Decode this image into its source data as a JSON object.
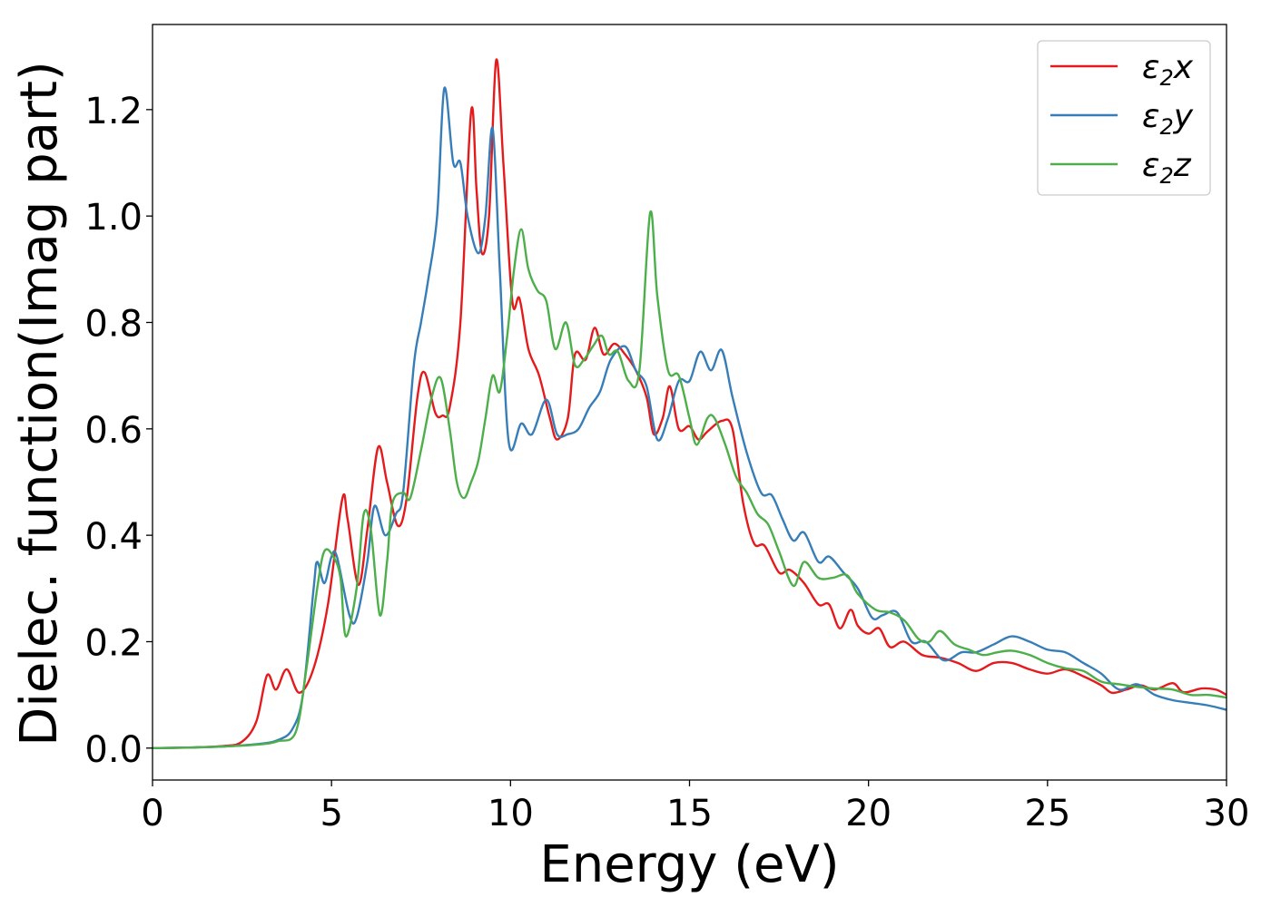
{
  "chart_data": {
    "type": "line",
    "title": "",
    "xlabel": "Energy (eV)",
    "ylabel": "Dielec. function(Imag part)",
    "xlim": [
      0,
      30
    ],
    "ylim": [
      -0.06,
      1.36
    ],
    "xticks": [
      0,
      5,
      10,
      15,
      20,
      25,
      30
    ],
    "xtick_labels": [
      "0",
      "5",
      "10",
      "15",
      "20",
      "25",
      "30"
    ],
    "yticks": [
      0.0,
      0.2,
      0.4,
      0.6,
      0.8,
      1.0,
      1.2
    ],
    "ytick_labels": [
      "0.0",
      "0.2",
      "0.4",
      "0.6",
      "0.8",
      "1.0",
      "1.2"
    ],
    "grid": false,
    "legend_position": "top-right",
    "series": [
      {
        "name": "ε₂x",
        "legend_base": "ε",
        "legend_sub": "2",
        "legend_suffix": "x",
        "color": "#e41a1c",
        "points": [
          [
            0,
            0
          ],
          [
            1,
            0.001
          ],
          [
            2,
            0.004
          ],
          [
            2.5,
            0.012
          ],
          [
            2.9,
            0.05
          ],
          [
            3.2,
            0.137
          ],
          [
            3.45,
            0.11
          ],
          [
            3.75,
            0.148
          ],
          [
            4.1,
            0.104
          ],
          [
            4.5,
            0.15
          ],
          [
            4.9,
            0.27
          ],
          [
            5.3,
            0.468
          ],
          [
            5.45,
            0.43
          ],
          [
            5.75,
            0.307
          ],
          [
            6,
            0.41
          ],
          [
            6.3,
            0.565
          ],
          [
            6.55,
            0.5
          ],
          [
            6.85,
            0.418
          ],
          [
            7.1,
            0.47
          ],
          [
            7.4,
            0.66
          ],
          [
            7.6,
            0.706
          ],
          [
            7.9,
            0.63
          ],
          [
            8.1,
            0.625
          ],
          [
            8.3,
            0.64
          ],
          [
            8.6,
            0.8
          ],
          [
            8.9,
            1.197
          ],
          [
            9.05,
            1.05
          ],
          [
            9.2,
            0.93
          ],
          [
            9.4,
            1.0
          ],
          [
            9.6,
            1.293
          ],
          [
            9.8,
            1.1
          ],
          [
            10.05,
            0.84
          ],
          [
            10.25,
            0.845
          ],
          [
            10.5,
            0.75
          ],
          [
            10.8,
            0.7
          ],
          [
            11.1,
            0.62
          ],
          [
            11.3,
            0.58
          ],
          [
            11.6,
            0.62
          ],
          [
            11.8,
            0.74
          ],
          [
            12.1,
            0.73
          ],
          [
            12.35,
            0.79
          ],
          [
            12.6,
            0.74
          ],
          [
            12.9,
            0.76
          ],
          [
            13.2,
            0.74
          ],
          [
            13.5,
            0.71
          ],
          [
            13.8,
            0.66
          ],
          [
            14,
            0.59
          ],
          [
            14.25,
            0.62
          ],
          [
            14.45,
            0.68
          ],
          [
            14.7,
            0.6
          ],
          [
            15,
            0.605
          ],
          [
            15.25,
            0.58
          ],
          [
            15.5,
            0.595
          ],
          [
            15.9,
            0.615
          ],
          [
            16.2,
            0.6
          ],
          [
            16.5,
            0.46
          ],
          [
            16.8,
            0.385
          ],
          [
            17.1,
            0.38
          ],
          [
            17.5,
            0.33
          ],
          [
            17.8,
            0.335
          ],
          [
            18.2,
            0.31
          ],
          [
            18.6,
            0.27
          ],
          [
            18.9,
            0.27
          ],
          [
            19.2,
            0.225
          ],
          [
            19.5,
            0.26
          ],
          [
            19.7,
            0.23
          ],
          [
            20,
            0.215
          ],
          [
            20.3,
            0.225
          ],
          [
            20.6,
            0.19
          ],
          [
            21,
            0.2
          ],
          [
            21.5,
            0.175
          ],
          [
            22,
            0.17
          ],
          [
            22.5,
            0.16
          ],
          [
            23,
            0.145
          ],
          [
            23.5,
            0.16
          ],
          [
            24,
            0.16
          ],
          [
            24.5,
            0.148
          ],
          [
            25,
            0.14
          ],
          [
            25.5,
            0.148
          ],
          [
            26,
            0.135
          ],
          [
            26.5,
            0.118
          ],
          [
            26.8,
            0.104
          ],
          [
            27.2,
            0.11
          ],
          [
            27.6,
            0.118
          ],
          [
            28,
            0.11
          ],
          [
            28.5,
            0.122
          ],
          [
            28.8,
            0.105
          ],
          [
            29.3,
            0.112
          ],
          [
            29.7,
            0.11
          ],
          [
            30,
            0.1
          ]
        ]
      },
      {
        "name": "ε₂y",
        "legend_base": "ε",
        "legend_sub": "2",
        "legend_suffix": "y",
        "color": "#377eb8",
        "points": [
          [
            0,
            0
          ],
          [
            1,
            0.001
          ],
          [
            2,
            0.003
          ],
          [
            3,
            0.008
          ],
          [
            3.5,
            0.015
          ],
          [
            3.9,
            0.035
          ],
          [
            4.2,
            0.1
          ],
          [
            4.5,
            0.3
          ],
          [
            4.6,
            0.35
          ],
          [
            4.8,
            0.31
          ],
          [
            5,
            0.36
          ],
          [
            5.15,
            0.36
          ],
          [
            5.5,
            0.25
          ],
          [
            5.7,
            0.245
          ],
          [
            6,
            0.35
          ],
          [
            6.2,
            0.455
          ],
          [
            6.5,
            0.4
          ],
          [
            6.8,
            0.44
          ],
          [
            7,
            0.48
          ],
          [
            7.3,
            0.72
          ],
          [
            7.5,
            0.8
          ],
          [
            7.7,
            0.88
          ],
          [
            7.95,
            1.0
          ],
          [
            8.15,
            1.24
          ],
          [
            8.4,
            1.1
          ],
          [
            8.6,
            1.1
          ],
          [
            8.8,
            1.0
          ],
          [
            9.1,
            0.93
          ],
          [
            9.3,
            1.0
          ],
          [
            9.5,
            1.165
          ],
          [
            9.7,
            0.9
          ],
          [
            9.95,
            0.575
          ],
          [
            10.3,
            0.61
          ],
          [
            10.6,
            0.59
          ],
          [
            11,
            0.655
          ],
          [
            11.3,
            0.59
          ],
          [
            11.6,
            0.59
          ],
          [
            11.9,
            0.6
          ],
          [
            12.2,
            0.64
          ],
          [
            12.5,
            0.67
          ],
          [
            12.8,
            0.73
          ],
          [
            13.2,
            0.755
          ],
          [
            13.5,
            0.71
          ],
          [
            13.8,
            0.68
          ],
          [
            14.1,
            0.58
          ],
          [
            14.4,
            0.62
          ],
          [
            14.7,
            0.69
          ],
          [
            15,
            0.69
          ],
          [
            15.3,
            0.745
          ],
          [
            15.6,
            0.71
          ],
          [
            15.9,
            0.748
          ],
          [
            16.2,
            0.66
          ],
          [
            16.6,
            0.555
          ],
          [
            17,
            0.48
          ],
          [
            17.3,
            0.475
          ],
          [
            17.6,
            0.43
          ],
          [
            17.9,
            0.39
          ],
          [
            18.2,
            0.405
          ],
          [
            18.6,
            0.35
          ],
          [
            18.9,
            0.36
          ],
          [
            19.3,
            0.33
          ],
          [
            19.7,
            0.3
          ],
          [
            20.1,
            0.245
          ],
          [
            20.4,
            0.25
          ],
          [
            20.8,
            0.255
          ],
          [
            21.2,
            0.2
          ],
          [
            21.6,
            0.2
          ],
          [
            22.1,
            0.165
          ],
          [
            22.6,
            0.18
          ],
          [
            23,
            0.18
          ],
          [
            23.5,
            0.195
          ],
          [
            24,
            0.21
          ],
          [
            24.5,
            0.2
          ],
          [
            25,
            0.185
          ],
          [
            25.5,
            0.18
          ],
          [
            26,
            0.16
          ],
          [
            26.5,
            0.14
          ],
          [
            27,
            0.11
          ],
          [
            27.5,
            0.12
          ],
          [
            28,
            0.1
          ],
          [
            28.5,
            0.09
          ],
          [
            29,
            0.085
          ],
          [
            29.5,
            0.08
          ],
          [
            30,
            0.072
          ]
        ]
      },
      {
        "name": "ε₂z",
        "legend_base": "ε",
        "legend_sub": "2",
        "legend_suffix": "z",
        "color": "#4daf4a",
        "points": [
          [
            0,
            0
          ],
          [
            1,
            0.001
          ],
          [
            2,
            0.003
          ],
          [
            3,
            0.007
          ],
          [
            3.5,
            0.013
          ],
          [
            4,
            0.03
          ],
          [
            4.3,
            0.15
          ],
          [
            4.6,
            0.3
          ],
          [
            4.8,
            0.37
          ],
          [
            5.05,
            0.36
          ],
          [
            5.25,
            0.32
          ],
          [
            5.4,
            0.21
          ],
          [
            5.7,
            0.3
          ],
          [
            5.9,
            0.44
          ],
          [
            6.1,
            0.41
          ],
          [
            6.35,
            0.25
          ],
          [
            6.55,
            0.35
          ],
          [
            6.7,
            0.46
          ],
          [
            7,
            0.48
          ],
          [
            7.2,
            0.47
          ],
          [
            7.5,
            0.56
          ],
          [
            7.8,
            0.66
          ],
          [
            8.05,
            0.695
          ],
          [
            8.3,
            0.6
          ],
          [
            8.5,
            0.5
          ],
          [
            8.7,
            0.47
          ],
          [
            8.9,
            0.5
          ],
          [
            9.1,
            0.54
          ],
          [
            9.3,
            0.62
          ],
          [
            9.5,
            0.7
          ],
          [
            9.7,
            0.67
          ],
          [
            9.9,
            0.77
          ],
          [
            10.1,
            0.9
          ],
          [
            10.3,
            0.975
          ],
          [
            10.5,
            0.9
          ],
          [
            10.75,
            0.86
          ],
          [
            11,
            0.84
          ],
          [
            11.25,
            0.75
          ],
          [
            11.55,
            0.8
          ],
          [
            11.8,
            0.72
          ],
          [
            12.05,
            0.73
          ],
          [
            12.3,
            0.755
          ],
          [
            12.55,
            0.775
          ],
          [
            12.75,
            0.74
          ],
          [
            13,
            0.745
          ],
          [
            13.3,
            0.69
          ],
          [
            13.6,
            0.71
          ],
          [
            13.9,
            1.006
          ],
          [
            14.1,
            0.85
          ],
          [
            14.4,
            0.71
          ],
          [
            14.7,
            0.7
          ],
          [
            15,
            0.62
          ],
          [
            15.2,
            0.57
          ],
          [
            15.5,
            0.62
          ],
          [
            15.7,
            0.62
          ],
          [
            16,
            0.57
          ],
          [
            16.3,
            0.51
          ],
          [
            16.6,
            0.48
          ],
          [
            16.9,
            0.44
          ],
          [
            17.2,
            0.42
          ],
          [
            17.5,
            0.37
          ],
          [
            17.9,
            0.305
          ],
          [
            18.2,
            0.35
          ],
          [
            18.6,
            0.32
          ],
          [
            19,
            0.32
          ],
          [
            19.4,
            0.325
          ],
          [
            19.7,
            0.29
          ],
          [
            20.2,
            0.26
          ],
          [
            20.6,
            0.255
          ],
          [
            21,
            0.24
          ],
          [
            21.4,
            0.205
          ],
          [
            21.7,
            0.2
          ],
          [
            22,
            0.22
          ],
          [
            22.4,
            0.195
          ],
          [
            22.8,
            0.185
          ],
          [
            23.2,
            0.175
          ],
          [
            23.6,
            0.18
          ],
          [
            24,
            0.183
          ],
          [
            24.5,
            0.175
          ],
          [
            25,
            0.16
          ],
          [
            25.5,
            0.15
          ],
          [
            26,
            0.145
          ],
          [
            26.5,
            0.125
          ],
          [
            27,
            0.12
          ],
          [
            27.5,
            0.115
          ],
          [
            28,
            0.112
          ],
          [
            28.5,
            0.11
          ],
          [
            29,
            0.1
          ],
          [
            29.5,
            0.1
          ],
          [
            30,
            0.095
          ]
        ]
      }
    ]
  }
}
